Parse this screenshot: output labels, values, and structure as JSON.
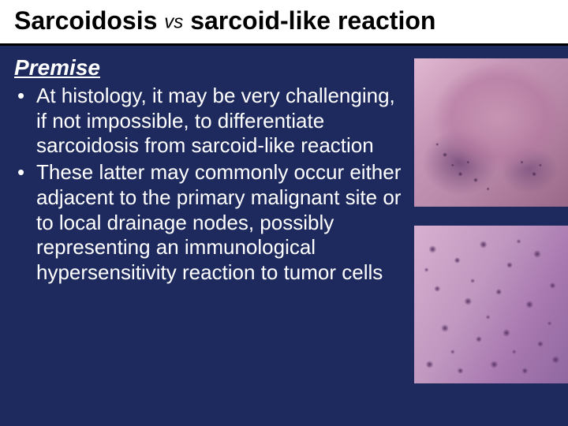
{
  "slide": {
    "background_color": "#1e2a5e",
    "title_bar_bg": "#ffffff",
    "title_color": "#000000",
    "text_color": "#ffffff"
  },
  "title": {
    "part1": "Sarcoidosis ",
    "vs": "vs",
    "part2": " sarcoid-like reaction",
    "fontsize": 32
  },
  "premise": {
    "heading": "Premise",
    "heading_fontsize": 28,
    "bullets": [
      "At histology, it may be very challenging, if not impossible, to differentiate sarcoidosis from sarcoid-like reaction",
      "These latter may commonly occur either adjacent to the primary malignant site or to local drainage nodes, possibly representing an immunological hypersensitivity reaction to tumor cells"
    ],
    "bullet_fontsize": 26
  },
  "images": [
    {
      "name": "histology-granuloma",
      "description": "histology micrograph showing pink granuloma with surrounding dark lymphocytes",
      "dominant_colors": [
        "#e0b8d0",
        "#c898b8",
        "#9a6888",
        "#4a2850"
      ]
    },
    {
      "name": "histology-cells",
      "description": "histology micrograph high-power view with scattered dark nuclei on pink-purple background",
      "dominant_colors": [
        "#d8b0d0",
        "#a878b0",
        "#5a3565"
      ]
    }
  ]
}
